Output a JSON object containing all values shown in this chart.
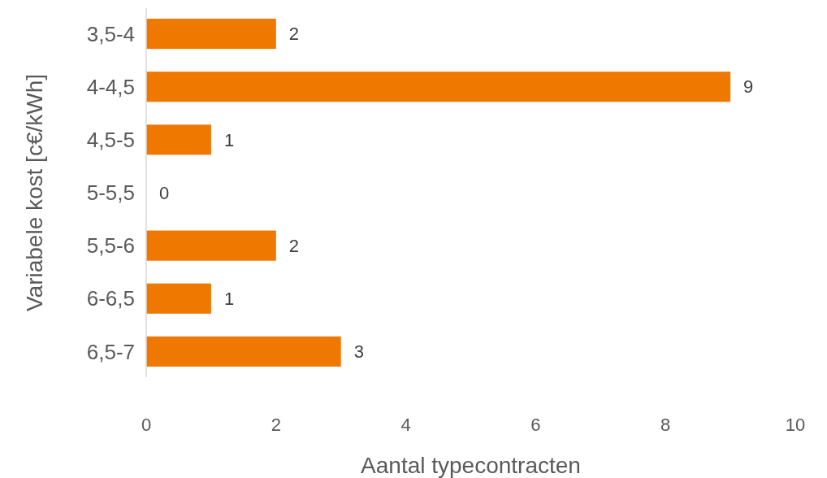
{
  "chart_data": {
    "type": "bar",
    "orientation": "horizontal",
    "categories": [
      "3,5-4",
      "4-4,5",
      "4,5-5",
      "5-5,5",
      "5,5-6",
      "6-6,5",
      "6,5-7"
    ],
    "values": [
      2,
      9,
      1,
      0,
      2,
      1,
      3
    ],
    "color": "#ef7800",
    "xlabel": "Aantal typecontracten",
    "ylabel": "Variabele kost [c€/kWh]",
    "xlim": [
      0,
      10
    ],
    "xticks": [
      0,
      2,
      4,
      6,
      8,
      10
    ],
    "data_labels": true
  }
}
